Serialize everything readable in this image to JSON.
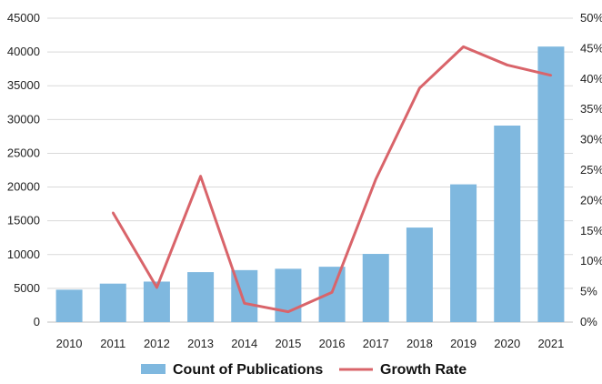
{
  "chart_data": {
    "type": "bar",
    "categories": [
      "2010",
      "2011",
      "2012",
      "2013",
      "2014",
      "2015",
      "2016",
      "2017",
      "2018",
      "2019",
      "2020",
      "2021"
    ],
    "series": [
      {
        "name": "Count of Publications",
        "type": "bar",
        "axis": "left",
        "color": "#7fb8df",
        "values": [
          4800,
          5700,
          6000,
          7400,
          7700,
          7900,
          8200,
          10100,
          14000,
          20400,
          29100,
          40800
        ]
      },
      {
        "name": "Growth Rate",
        "type": "line",
        "axis": "right",
        "color": "#d9646a",
        "values": [
          null,
          18.0,
          5.7,
          24.0,
          3.1,
          1.7,
          4.9,
          23.5,
          38.5,
          45.3,
          42.3,
          40.6
        ]
      }
    ],
    "yleft": {
      "ylim": [
        0,
        45000
      ],
      "ticks": [
        "0",
        "5000",
        "10000",
        "15000",
        "20000",
        "25000",
        "30000",
        "35000",
        "40000",
        "45000"
      ]
    },
    "yright": {
      "ylim": [
        0,
        50
      ],
      "ticks": [
        "0%",
        "5%",
        "10%",
        "15%",
        "20%",
        "25%",
        "30%",
        "35%",
        "40%",
        "45%",
        "50%"
      ]
    },
    "grid": true,
    "legend": {
      "position": "bottom",
      "items": [
        "Count of Publications",
        "Growth Rate"
      ]
    },
    "title": "",
    "xlabel": "",
    "ylabel": ""
  }
}
